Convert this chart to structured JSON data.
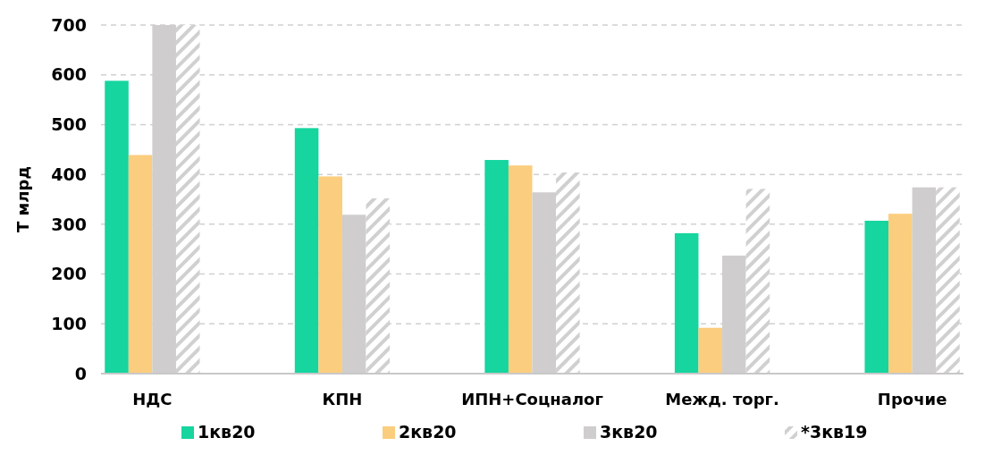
{
  "chart_data": {
    "type": "bar",
    "ylabel": "Т млрд",
    "categories": [
      "НДС",
      "КПН",
      "ИПН+Соцналог",
      "Межд. торг.",
      "Прочие"
    ],
    "series": [
      {
        "name": "1кв20",
        "color": "#16d59f",
        "values": [
          588,
          493,
          429,
          282,
          307
        ]
      },
      {
        "name": "2кв20",
        "color": "#fbcd7e",
        "values": [
          439,
          396,
          418,
          92,
          321
        ]
      },
      {
        "name": "3кв20",
        "color": "#cfcdce",
        "values": [
          700,
          319,
          364,
          237,
          374
        ]
      },
      {
        "name": "*3кв19",
        "color": "#d0d0d0",
        "values": [
          700,
          352,
          404,
          371,
          374
        ]
      }
    ],
    "ylim": [
      0,
      700
    ],
    "yticks": [
      0,
      100,
      200,
      300,
      400,
      500,
      600,
      700
    ],
    "grid": "y",
    "legend": "bottom"
  }
}
